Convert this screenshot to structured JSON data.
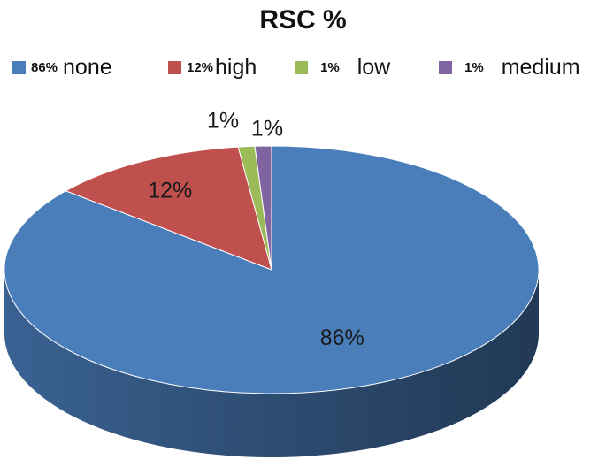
{
  "chart_data": {
    "type": "pie",
    "title": "RSC %",
    "legend_position": "top",
    "slices": [
      {
        "label": "none",
        "legend_pct": "86%",
        "data_label": "86%",
        "value": 86,
        "color": "#4a7ebb"
      },
      {
        "label": "high",
        "legend_pct": "12%",
        "data_label": "12%",
        "value": 12,
        "color": "#c0504d"
      },
      {
        "label": "low",
        "legend_pct": "1%",
        "data_label": "1%",
        "value": 1,
        "color": "#9bbb59"
      },
      {
        "label": "medium",
        "legend_pct": "1%",
        "data_label": "1%",
        "value": 1,
        "color": "#8064a2"
      }
    ]
  }
}
